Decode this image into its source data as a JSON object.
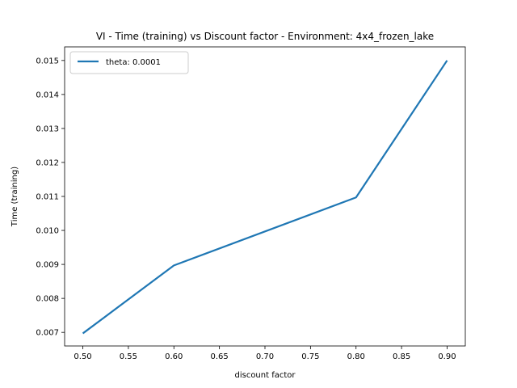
{
  "chart_data": {
    "type": "line",
    "title": "VI - Time (training) vs Discount factor - Environment: 4x4_frozen_lake",
    "xlabel": "discount factor",
    "ylabel": "Time (training)",
    "xlim": [
      0.48,
      0.92
    ],
    "ylim": [
      0.0066,
      0.0154
    ],
    "x_ticks": [
      0.5,
      0.55,
      0.6,
      0.65,
      0.7,
      0.75,
      0.8,
      0.85,
      0.9
    ],
    "x_tick_labels": [
      "0.50",
      "0.55",
      "0.60",
      "0.65",
      "0.70",
      "0.75",
      "0.80",
      "0.85",
      "0.90"
    ],
    "y_ticks": [
      0.007,
      0.008,
      0.009,
      0.01,
      0.011,
      0.012,
      0.013,
      0.014,
      0.015
    ],
    "y_tick_labels": [
      "0.007",
      "0.008",
      "0.009",
      "0.010",
      "0.011",
      "0.012",
      "0.013",
      "0.014",
      "0.015"
    ],
    "grid": false,
    "legend_position": "top-left",
    "series": [
      {
        "name": "theta: 0.0001",
        "color": "#1f77b4",
        "x": [
          0.5,
          0.6,
          0.8,
          0.9
        ],
        "y": [
          0.00697,
          0.00897,
          0.01097,
          0.015
        ]
      }
    ]
  }
}
